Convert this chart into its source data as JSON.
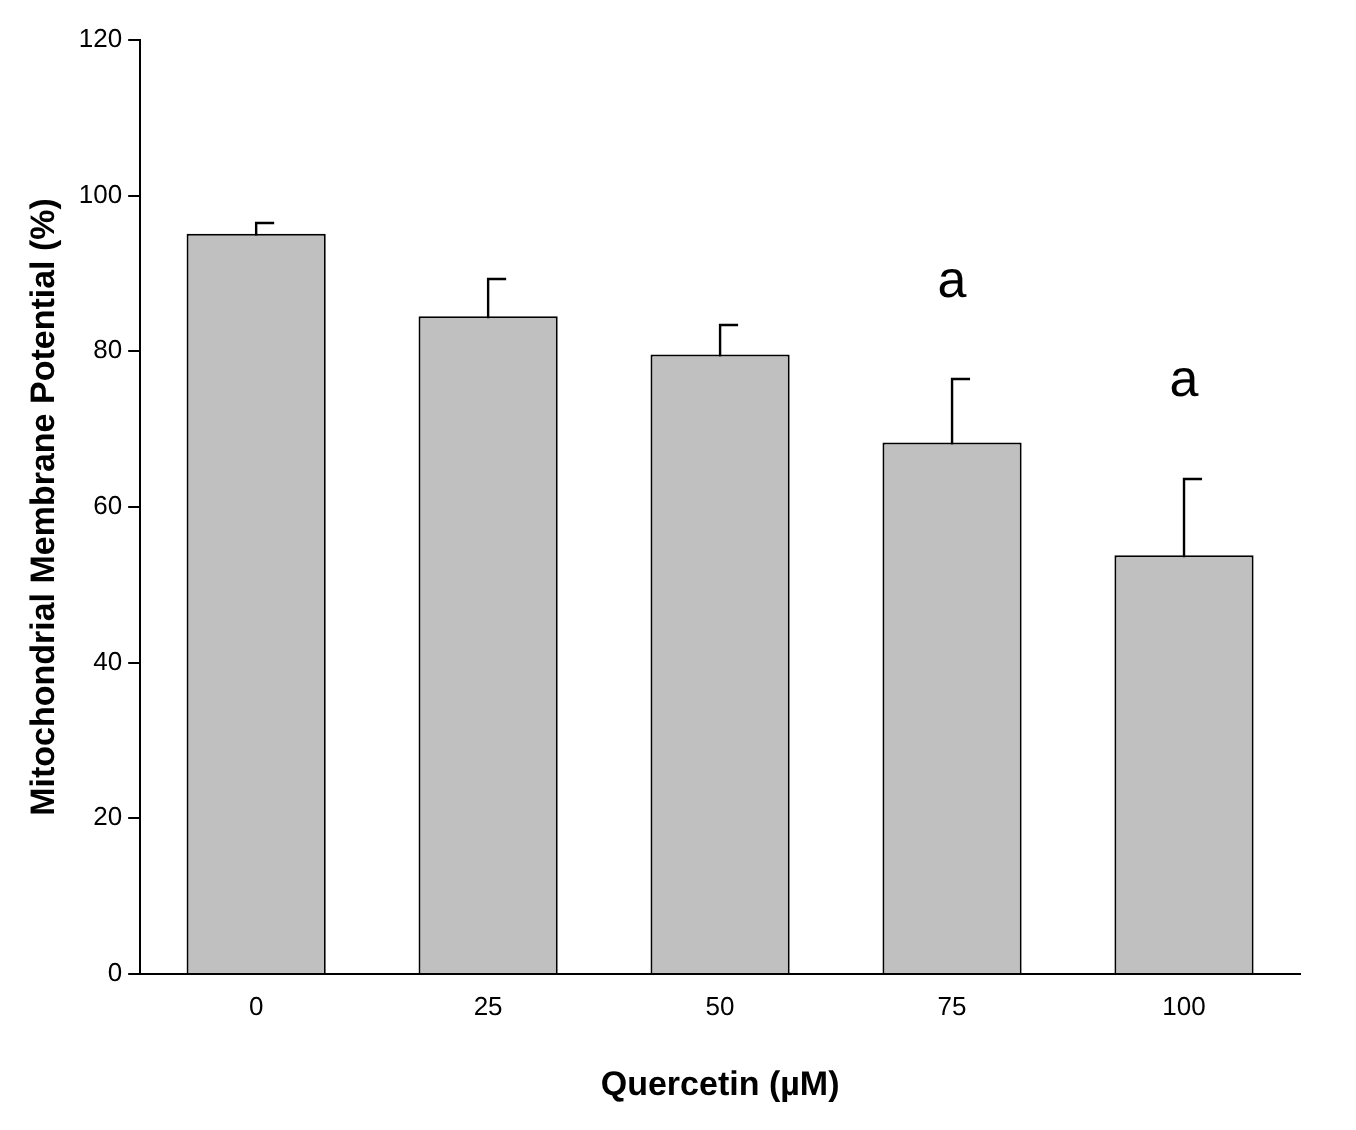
{
  "chart_data": {
    "type": "bar",
    "xlabel": "Quercetin (µM)",
    "ylabel": "Mitochondrial Membrane Potential (%)",
    "categories": [
      "0",
      "25",
      "50",
      "75",
      "100"
    ],
    "values": [
      95.1,
      84.5,
      79.6,
      68.3,
      53.8
    ],
    "errors": [
      1.5,
      4.9,
      3.8,
      8.2,
      10
    ],
    "color": "#c0c0c0",
    "ylim": [
      0,
      120
    ],
    "yticks": [
      0,
      20,
      40,
      60,
      80,
      100,
      120
    ],
    "grid": false,
    "annotations": [
      "a",
      "a"
    ]
  }
}
